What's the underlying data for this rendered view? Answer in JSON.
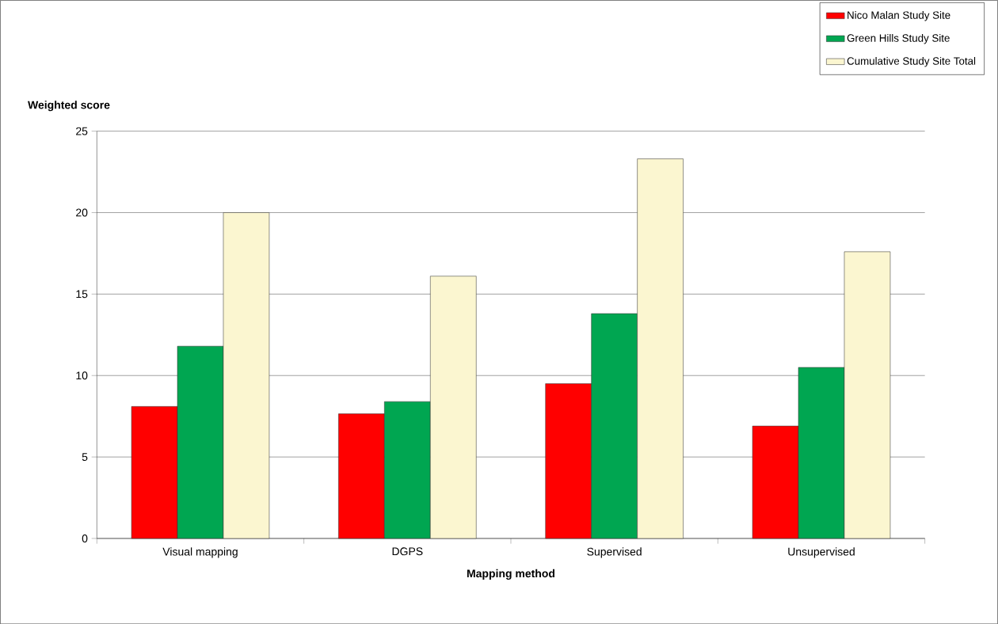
{
  "chart_data": {
    "type": "bar",
    "xlabel": "Mapping method",
    "ylabel": "Weighted score",
    "categories": [
      "Visual mapping",
      "DGPS",
      "Supervised",
      "Unsupervised"
    ],
    "series": [
      {
        "name": "Nico Malan Study Site",
        "color": "#ff0000",
        "values": [
          8.1,
          7.65,
          9.5,
          6.9
        ]
      },
      {
        "name": "Green Hills Study Site",
        "color": "#00a651",
        "values": [
          11.8,
          8.4,
          13.8,
          10.5
        ]
      },
      {
        "name": "Cumulative Study Site Total",
        "color": "#fbf6d0",
        "values": [
          20.0,
          16.1,
          23.3,
          17.6
        ]
      }
    ],
    "ylim": [
      0,
      25
    ],
    "yticks": [
      0,
      5,
      10,
      15,
      20,
      25
    ],
    "grid": "y",
    "legend": "top right"
  }
}
